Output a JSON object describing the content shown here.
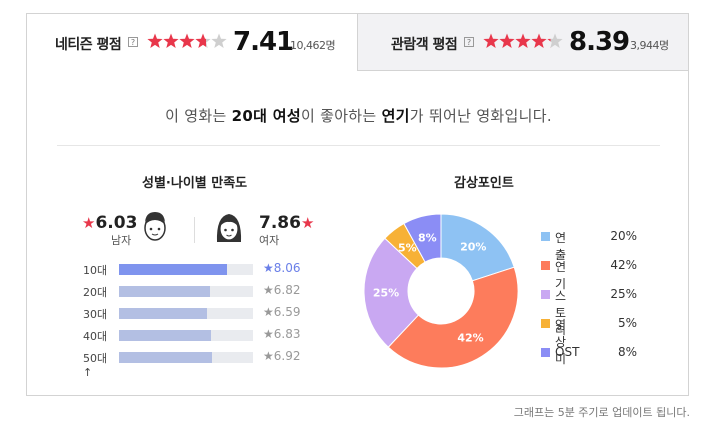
{
  "ratings": {
    "netizen": {
      "label": "네티즌 평점",
      "help": "?",
      "score": "7.41",
      "count": "10,462명",
      "stars": 3.7
    },
    "audience": {
      "label": "관람객 평점",
      "help": "?",
      "score": "8.39",
      "count": "3,944명",
      "stars": 4.2
    }
  },
  "summary": {
    "pre": "이 영화는 ",
    "who": "20대 여성",
    "mid": "이 좋아하는 ",
    "what": "연기",
    "post": "가 뛰어난 영화입니다."
  },
  "gender_section": {
    "title": "성별·나이별 만족도",
    "male": {
      "score": "6.03",
      "label": "남자"
    },
    "female": {
      "score": "7.86",
      "label": "여자"
    },
    "star_char": "★",
    "ages": [
      {
        "label": "10대",
        "score": "8.06",
        "value": 8.06,
        "highlight": true
      },
      {
        "label": "20대",
        "score": "6.82",
        "value": 6.82,
        "highlight": false
      },
      {
        "label": "30대",
        "score": "6.59",
        "value": 6.59,
        "highlight": false
      },
      {
        "label": "40대",
        "score": "6.83",
        "value": 6.83,
        "highlight": false
      },
      {
        "label": "50대↑",
        "score": "6.92",
        "value": 6.92,
        "highlight": false
      }
    ]
  },
  "point_section": {
    "title": "감상포인트"
  },
  "chart_data": {
    "type": "pie",
    "title": "감상포인트",
    "categories": [
      "연출",
      "연기",
      "스토리",
      "영상미",
      "OST"
    ],
    "values": [
      20,
      42,
      25,
      5,
      8
    ],
    "value_labels": [
      "20%",
      "42%",
      "25%",
      "5%",
      "8%"
    ],
    "colors": [
      "#8ec2f3",
      "#fd7c5c",
      "#c9a8f2",
      "#f7b136",
      "#8b8df5"
    ],
    "donut": true,
    "legend": "right"
  },
  "footnote": "그래프는 5분 주기로 업데이트 됩니다.",
  "colors": {
    "star_red": "#e8374b",
    "bar_highlight": "#7f94ee",
    "bar_normal": "#b3bfe3"
  }
}
